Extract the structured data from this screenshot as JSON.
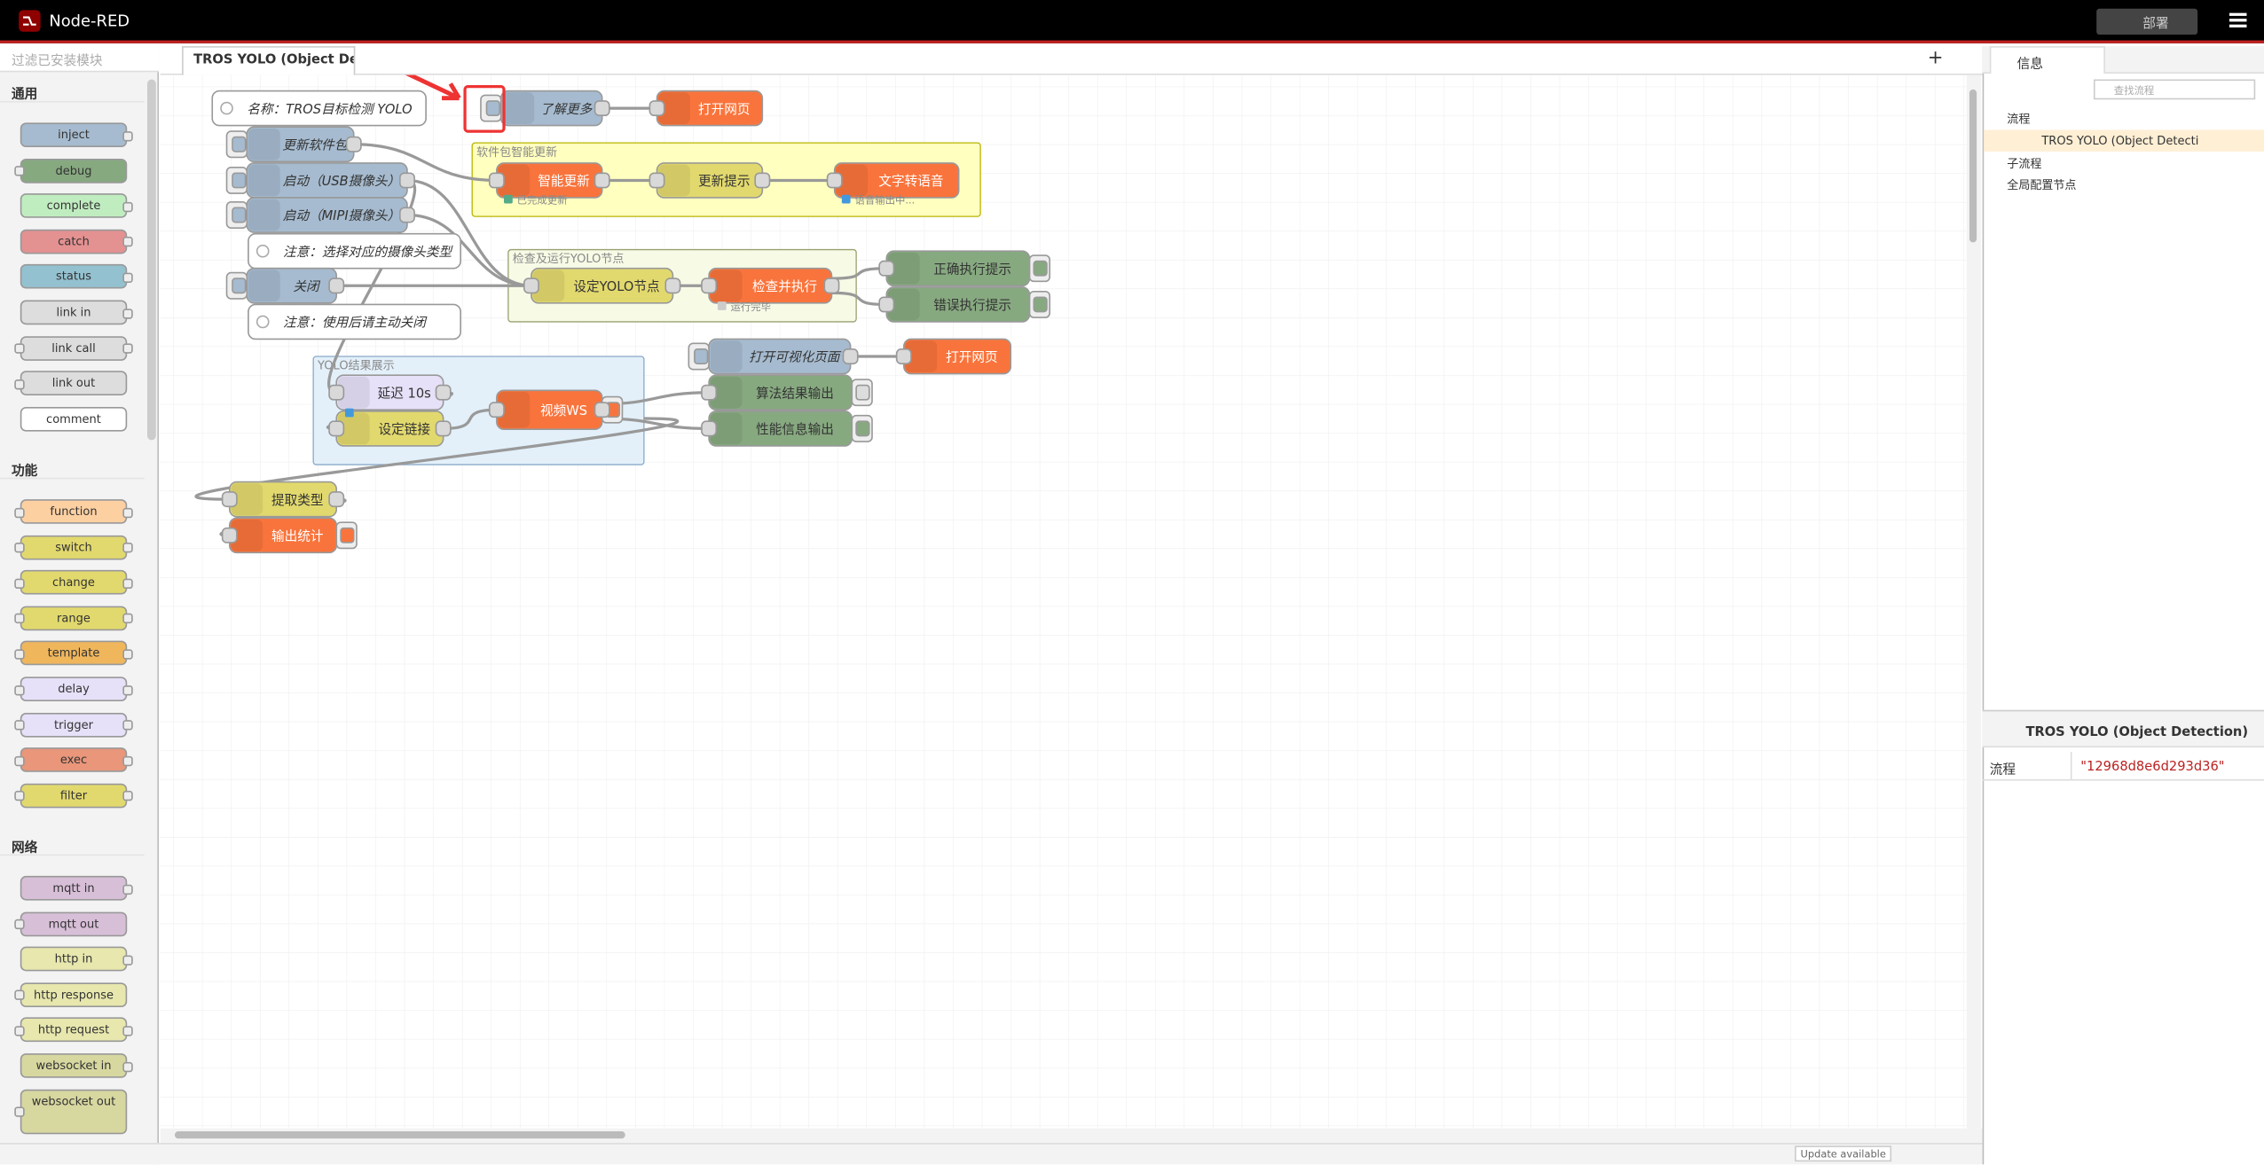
{
  "header": {
    "title": "Node-RED",
    "deploy": "部署"
  },
  "palette": {
    "search": "过滤已安装模块",
    "categories": [
      {
        "name": "通用",
        "nodes": [
          "inject",
          "debug",
          "complete",
          "catch",
          "status",
          "link in",
          "link call",
          "link out",
          "comment"
        ]
      },
      {
        "name": "功能",
        "nodes": [
          "function",
          "switch",
          "change",
          "range",
          "template",
          "delay",
          "trigger",
          "exec",
          "filter"
        ]
      },
      {
        "name": "网络",
        "nodes": [
          "mqtt in",
          "mqtt out",
          "http in",
          "http response",
          "http request",
          "websocket in",
          "websocket out"
        ]
      }
    ]
  },
  "workspace": {
    "tab": "TROS YOLO (Object Detecti",
    "groups": [
      "软件包智能更新",
      "检查及运行YOLO节点",
      "YOLO结果展示"
    ],
    "nodes": [
      "名称：TROS目标检测 YOLO",
      "了解更多",
      "打开网页",
      "更新软件包",
      "启动（USB摄像头）",
      "启动（MIPI摄像头）",
      "注意：选择对应的摄像头类型",
      "关闭",
      "注意：使用后请主动关闭",
      "智能更新",
      "更新提示",
      "文字转语音",
      "设定YOLO节点",
      "检查并执行",
      "正确执行提示",
      "错误执行提示",
      "打开可视化页面",
      "打开网页",
      "延迟 10s",
      "设定链接",
      "视频WS",
      "算法结果输出",
      "性能信息输出",
      "提取类型",
      "输出统计"
    ],
    "status": [
      "已完成更新",
      "语音输出中...",
      "运行完毕"
    ]
  },
  "sidebar": {
    "tab": "信息",
    "search": "查找流程",
    "tree": [
      "流程",
      "TROS YOLO (Object Detecti",
      "子流程",
      "全局配置节点"
    ],
    "info_title": "TROS YOLO (Object Detection)",
    "info_rows": [
      [
        "流程",
        "\"12968d8e6d293d36\""
      ]
    ]
  },
  "footer": {
    "update": "Update available"
  }
}
